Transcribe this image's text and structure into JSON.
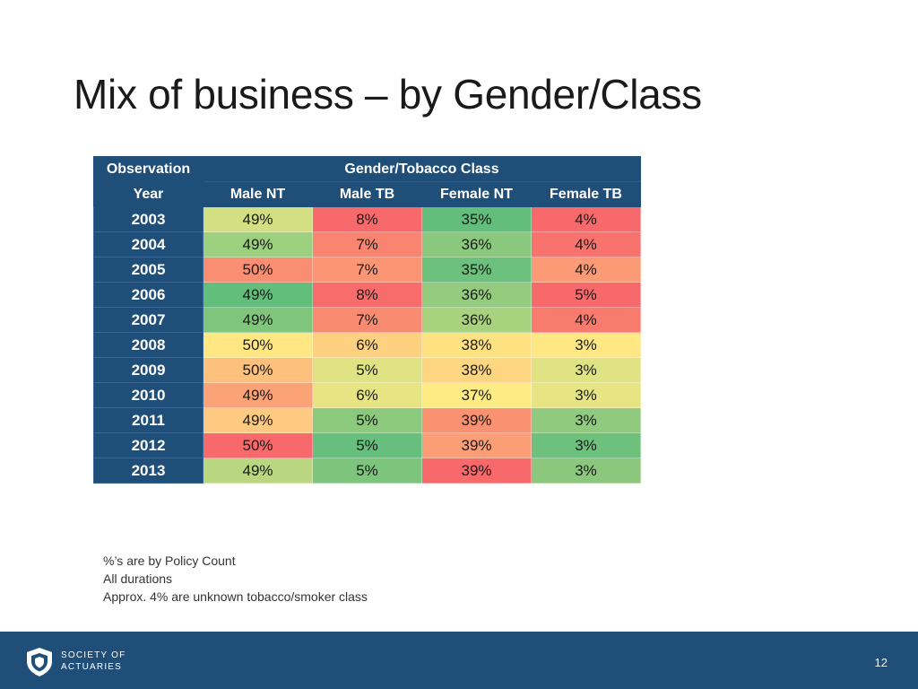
{
  "slide": {
    "title": "Mix of business – by Gender/Class",
    "page_number": "12"
  },
  "table": {
    "header_top_left": "Observation",
    "header_group": "Gender/Tobacco Class",
    "header_year": "Year",
    "columns": [
      "Male NT",
      "Male TB",
      "Female NT",
      "Female TB"
    ],
    "rows": [
      {
        "year": "2003",
        "cells": [
          "49%",
          "8%",
          "35%",
          "4%"
        ]
      },
      {
        "year": "2004",
        "cells": [
          "49%",
          "7%",
          "36%",
          "4%"
        ]
      },
      {
        "year": "2005",
        "cells": [
          "50%",
          "7%",
          "35%",
          "4%"
        ]
      },
      {
        "year": "2006",
        "cells": [
          "49%",
          "8%",
          "36%",
          "5%"
        ]
      },
      {
        "year": "2007",
        "cells": [
          "49%",
          "7%",
          "36%",
          "4%"
        ]
      },
      {
        "year": "2008",
        "cells": [
          "50%",
          "6%",
          "38%",
          "3%"
        ]
      },
      {
        "year": "2009",
        "cells": [
          "50%",
          "5%",
          "38%",
          "3%"
        ]
      },
      {
        "year": "2010",
        "cells": [
          "49%",
          "6%",
          "37%",
          "3%"
        ]
      },
      {
        "year": "2011",
        "cells": [
          "49%",
          "5%",
          "39%",
          "3%"
        ]
      },
      {
        "year": "2012",
        "cells": [
          "50%",
          "5%",
          "39%",
          "3%"
        ]
      },
      {
        "year": "2013",
        "cells": [
          "49%",
          "5%",
          "39%",
          "3%"
        ]
      }
    ],
    "cell_colors": [
      [
        "#d2df82",
        "#f8696b",
        "#63be7b",
        "#f8696b"
      ],
      [
        "#9ccf7e",
        "#f98570",
        "#8ac87d",
        "#f8736d"
      ],
      [
        "#fa8e72",
        "#fb9574",
        "#6cc17c",
        "#fb9a74"
      ],
      [
        "#63be7b",
        "#f86d6c",
        "#94cb7e",
        "#f8696b"
      ],
      [
        "#7fc57c",
        "#f98b71",
        "#a9d27f",
        "#f97b6e"
      ],
      [
        "#ffe784",
        "#fed180",
        "#fee282",
        "#ffe784"
      ],
      [
        "#fdc07d",
        "#e0e383",
        "#fed580",
        "#e0e383"
      ],
      [
        "#fba276",
        "#e7e583",
        "#ffeb84",
        "#e6e483"
      ],
      [
        "#fec980",
        "#8bc97d",
        "#fa9272",
        "#8fca7e"
      ],
      [
        "#f8696b",
        "#66bf7c",
        "#fb9d75",
        "#6dc17c"
      ],
      [
        "#b9d780",
        "#7dc47c",
        "#f8696b",
        "#8bc87d"
      ]
    ]
  },
  "notes": [
    "%’s are by Policy Count",
    "All durations",
    "Approx. 4% are unknown tobacco/smoker class"
  ],
  "logo": {
    "line1": "SOCIETY OF",
    "line2": "ACTUARIES",
    "shape": "shield-icon"
  },
  "colors": {
    "brand_navy": "#1f4e79"
  }
}
